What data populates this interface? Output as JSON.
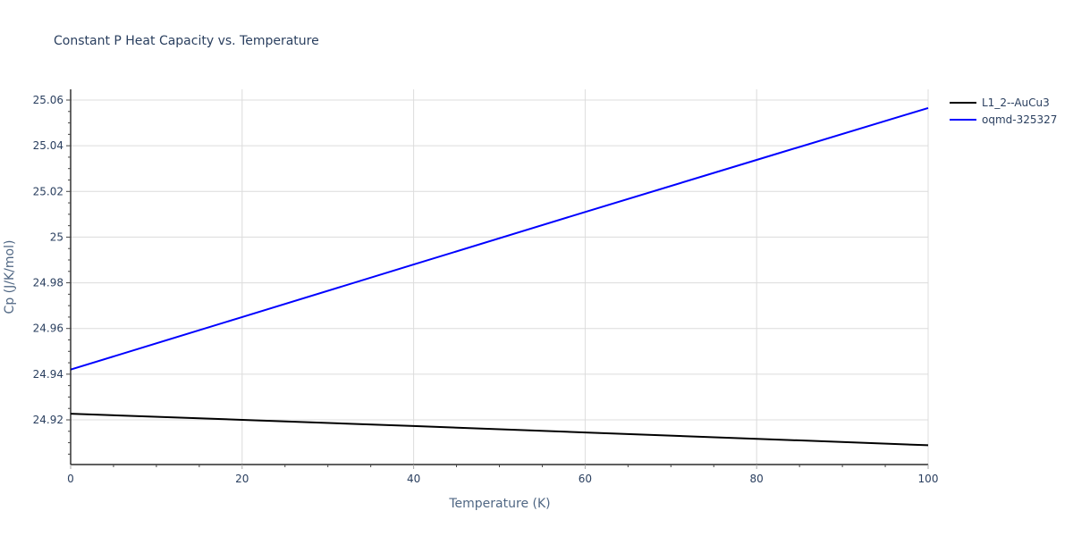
{
  "chart_data": {
    "type": "line",
    "title": "Constant P Heat Capacity vs. Temperature",
    "xlabel": "Temperature (K)",
    "ylabel": "Cp (J/K/mol)",
    "xlim": [
      0,
      100
    ],
    "ylim": [
      24.9,
      25.065
    ],
    "x_ticks": [
      0,
      20,
      40,
      60,
      80,
      100
    ],
    "y_ticks": [
      24.92,
      24.94,
      24.96,
      24.98,
      25,
      25.02,
      25.04,
      25.06
    ],
    "y_tick_labels": [
      "24.92",
      "24.94",
      "24.96",
      "24.98",
      "25",
      "25.02",
      "25.04",
      "25.06"
    ],
    "grid": true,
    "legend_position": "top-right-outside",
    "series": [
      {
        "name": "L1_2--AuCu3",
        "color": "#000000",
        "x": [
          0,
          20,
          40,
          60,
          80,
          100
        ],
        "values": [
          24.9227,
          24.92,
          24.9173,
          24.9145,
          24.9117,
          24.9089
        ]
      },
      {
        "name": "oqmd-325327",
        "color": "#0000ff",
        "x": [
          0,
          20,
          40,
          60,
          80,
          100
        ],
        "values": [
          24.942,
          24.965,
          24.988,
          25.011,
          25.0338,
          25.0565
        ]
      }
    ]
  }
}
